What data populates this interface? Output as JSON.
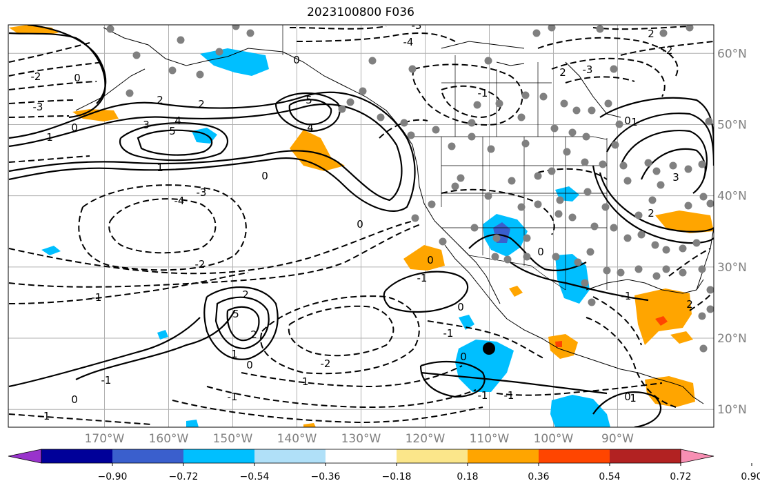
{
  "title": "2023100800 F036",
  "map": {
    "projection": "plate-carree",
    "lon_range": [
      -185,
      -75
    ],
    "lat_range": [
      7.5,
      64
    ],
    "grid": true,
    "lon_ticks": [
      "170°W",
      "160°W",
      "150°W",
      "140°W",
      "130°W",
      "120°W",
      "110°W",
      "100°W",
      "90°W"
    ],
    "lat_ticks": [
      "60°N",
      "50°N",
      "40°N",
      "30°N",
      "20°N",
      "10°N"
    ],
    "colors": {
      "contour": "#000000",
      "coast": "#000000",
      "station_dot": "#808080",
      "marker": "#000000",
      "axis_label": "#7f7f7f"
    }
  },
  "colorbar": {
    "extend": "both",
    "labels": [
      "−0.90",
      "−0.72",
      "−0.54",
      "−0.36",
      "−0.18",
      "0.18",
      "0.36",
      "0.54",
      "0.72",
      "0.90"
    ],
    "colors": [
      "#9933cc",
      "#000099",
      "#3a5fcd",
      "#00bfff",
      "#b0e0f8",
      "#ffffff",
      "#fbe68a",
      "#ffa500",
      "#ff4500",
      "#b22222",
      "#f78fb3"
    ]
  },
  "contour_labels": [
    "0",
    "1",
    "2",
    "3",
    "4",
    "5",
    "-1",
    "-2",
    "-3",
    "-4"
  ]
}
